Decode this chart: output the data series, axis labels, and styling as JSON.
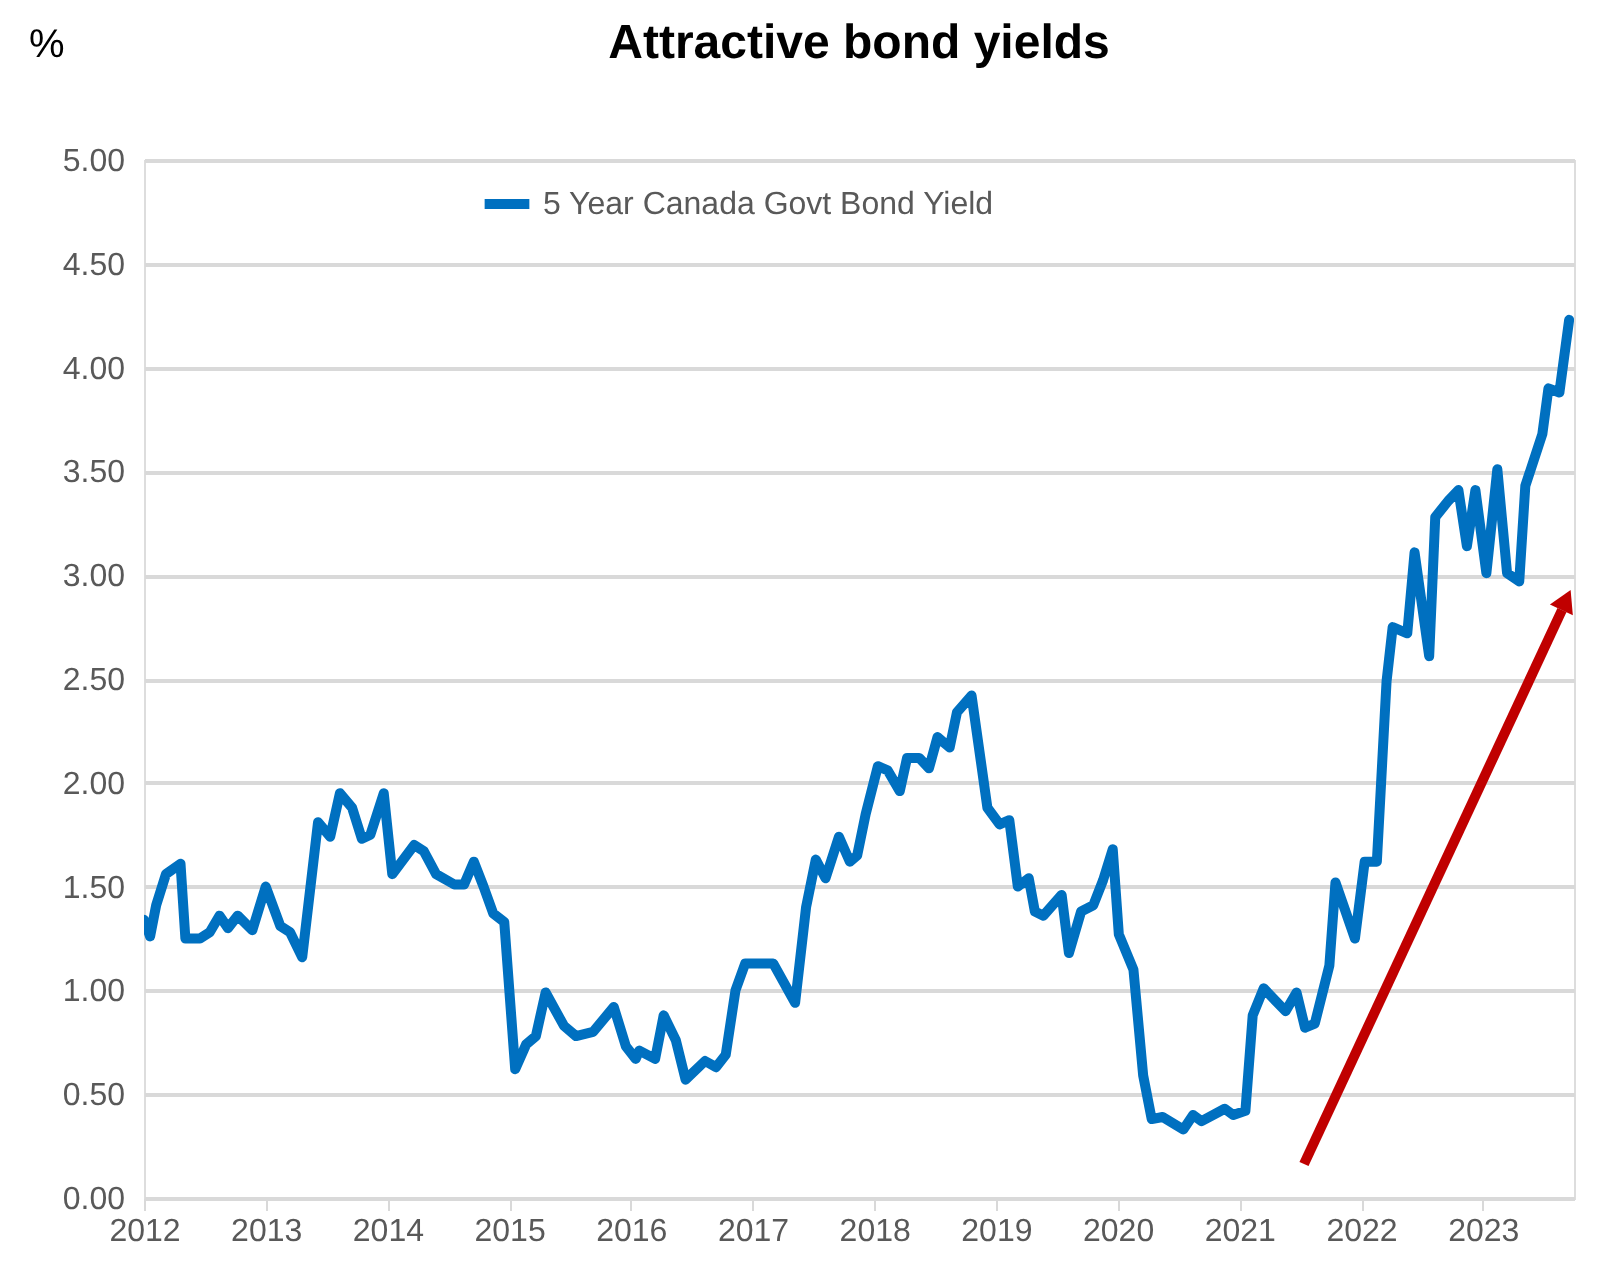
{
  "chart_data": {
    "type": "line",
    "title": "Attractive bond yields",
    "ylabel": "%",
    "x": [
      2012.0,
      2012.05,
      2012.1,
      2012.18,
      2012.3,
      2012.34,
      2012.46,
      2012.54,
      2012.62,
      2012.69,
      2012.77,
      2012.89,
      2013.0,
      2013.12,
      2013.2,
      2013.3,
      2013.43,
      2013.53,
      2013.61,
      2013.71,
      2013.79,
      2013.86,
      2013.97,
      2014.04,
      2014.22,
      2014.3,
      2014.4,
      2014.55,
      2014.63,
      2014.71,
      2014.79,
      2014.87,
      2014.96,
      2015.05,
      2015.14,
      2015.22,
      2015.3,
      2015.45,
      2015.55,
      2015.69,
      2015.86,
      2015.96,
      2016.04,
      2016.07,
      2016.2,
      2016.27,
      2016.37,
      2016.45,
      2016.61,
      2016.7,
      2016.78,
      2016.86,
      2016.94,
      2017.17,
      2017.35,
      2017.44,
      2017.52,
      2017.6,
      2017.71,
      2017.8,
      2017.86,
      2017.93,
      2018.03,
      2018.11,
      2018.21,
      2018.27,
      2018.37,
      2018.45,
      2018.52,
      2018.62,
      2018.68,
      2018.8,
      2018.93,
      2019.03,
      2019.11,
      2019.18,
      2019.27,
      2019.32,
      2019.39,
      2019.54,
      2019.6,
      2019.7,
      2019.8,
      2019.88,
      2019.96,
      2020.01,
      2020.13,
      2020.21,
      2020.28,
      2020.37,
      2020.54,
      2020.62,
      2020.69,
      2020.88,
      2020.95,
      2021.05,
      2021.11,
      2021.2,
      2021.38,
      2021.47,
      2021.54,
      2021.62,
      2021.74,
      2021.79,
      2021.95,
      2022.03,
      2022.13,
      2022.21,
      2022.26,
      2022.38,
      2022.44,
      2022.56,
      2022.61,
      2022.72,
      2022.8,
      2022.87,
      2022.94,
      2023.03,
      2023.12,
      2023.2,
      2023.3,
      2023.35,
      2023.49,
      2023.54,
      2023.63,
      2023.71
    ],
    "series": [
      {
        "name": "5 Year Canada Govt Bond Yield",
        "color": "#0070c0",
        "values": [
          1.34,
          1.26,
          1.41,
          1.56,
          1.61,
          1.25,
          1.25,
          1.28,
          1.36,
          1.3,
          1.36,
          1.29,
          1.5,
          1.31,
          1.28,
          1.16,
          1.81,
          1.74,
          1.95,
          1.88,
          1.73,
          1.75,
          1.95,
          1.56,
          1.7,
          1.67,
          1.56,
          1.51,
          1.51,
          1.62,
          1.5,
          1.37,
          1.33,
          0.62,
          0.74,
          0.78,
          0.99,
          0.83,
          0.78,
          0.8,
          0.92,
          0.73,
          0.67,
          0.71,
          0.67,
          0.88,
          0.76,
          0.57,
          0.66,
          0.63,
          0.69,
          1.0,
          1.13,
          1.13,
          0.94,
          1.4,
          1.63,
          1.54,
          1.74,
          1.62,
          1.65,
          1.85,
          2.08,
          2.06,
          1.96,
          2.12,
          2.12,
          2.07,
          2.22,
          2.17,
          2.34,
          2.42,
          1.88,
          1.8,
          1.82,
          1.5,
          1.54,
          1.38,
          1.36,
          1.46,
          1.18,
          1.38,
          1.41,
          1.53,
          1.68,
          1.27,
          1.1,
          0.59,
          0.38,
          0.39,
          0.33,
          0.4,
          0.37,
          0.43,
          0.4,
          0.42,
          0.88,
          1.01,
          0.9,
          0.99,
          0.82,
          0.84,
          1.12,
          1.52,
          1.25,
          1.62,
          1.62,
          2.49,
          2.75,
          2.72,
          3.11,
          2.61,
          3.28,
          3.36,
          3.41,
          3.14,
          3.41,
          3.01,
          3.51,
          3.01,
          2.97,
          3.43,
          3.68,
          3.9,
          3.88,
          4.23
        ]
      }
    ],
    "xlim": [
      2012,
      2023.75
    ],
    "xticks": [
      2012,
      2013,
      2014,
      2015,
      2016,
      2017,
      2018,
      2019,
      2020,
      2021,
      2022,
      2023
    ],
    "ylim": [
      0,
      5
    ],
    "yticks": [
      {
        "value": 0,
        "label": "0.00"
      },
      {
        "value": 0.5,
        "label": "0.50"
      },
      {
        "value": 1,
        "label": "1.00"
      },
      {
        "value": 1.5,
        "label": "1.50"
      },
      {
        "value": 2,
        "label": "2.00"
      },
      {
        "value": 2.5,
        "label": "2.50"
      },
      {
        "value": 3,
        "label": "3.00"
      },
      {
        "value": 3.5,
        "label": "3.50"
      },
      {
        "value": 4,
        "label": "4.00"
      },
      {
        "value": 4.5,
        "label": "4.50"
      },
      {
        "value": 5,
        "label": "5.00"
      }
    ],
    "grid": "y",
    "legend": "top",
    "line_style": "solid"
  }
}
